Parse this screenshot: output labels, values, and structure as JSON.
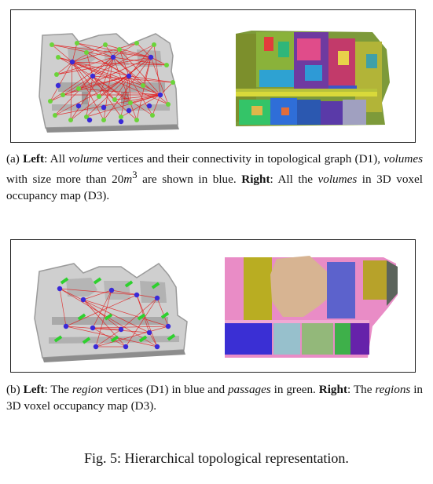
{
  "caption_a": {
    "prefix": "(a) ",
    "left_label": "Left",
    "t1": ": All ",
    "volume_1": "volume",
    "t2": " vertices and their connectivity in topological graph (D1), ",
    "volumes_1": "volumes",
    "t3": " with size more than 20",
    "unit": "m",
    "exp": "3",
    "t4": " are shown in blue. ",
    "right_label": "Right",
    "t5": ": All the ",
    "volumes_2": "volumes",
    "t6": " in 3D voxel occupancy map (D3)."
  },
  "caption_b": {
    "prefix": "(b) ",
    "left_label": "Left",
    "t1": ": The ",
    "region_1": "region",
    "t2": " vertices (D1) in blue and ",
    "passages": "passages",
    "t3": " in green. ",
    "right_label": "Right",
    "t4": ": The ",
    "regions": "regions",
    "t5": " in 3D voxel occupancy map (D3)."
  },
  "figure_caption": "Fig. 5: Hierarchical topological representation.",
  "colors": {
    "volume_vertex_blue": "#3a2ad8",
    "vertex_green": "#6bd43a",
    "edge_red": "#e01818",
    "passage_green": "#2ed02e",
    "map_gray": "#c9c9c9"
  }
}
